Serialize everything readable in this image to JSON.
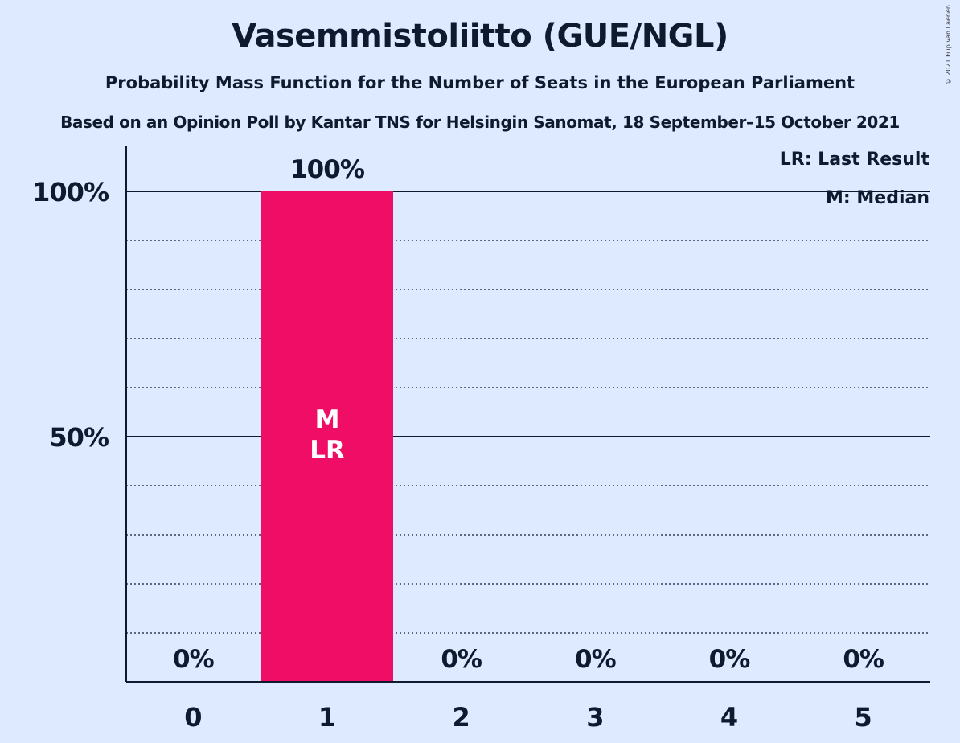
{
  "chart_data": {
    "type": "bar",
    "title": "Vasemmistoliitto (GUE/NGL)",
    "subtitle": "Probability Mass Function for the Number of Seats in the European Parliament",
    "subtitle2": "Based on an Opinion Poll by Kantar TNS for Helsingin Sanomat, 18 September–15 October 2021",
    "categories": [
      "0",
      "1",
      "2",
      "3",
      "4",
      "5"
    ],
    "values": [
      0,
      100,
      0,
      0,
      0,
      0
    ],
    "value_labels": [
      "0%",
      "100%",
      "0%",
      "0%",
      "0%",
      "0%"
    ],
    "bar_annotations": {
      "1": [
        "M",
        "LR"
      ]
    },
    "ylim": [
      0,
      100
    ],
    "yticks": [
      {
        "value": 50,
        "label": "50%"
      },
      {
        "value": 100,
        "label": "100%"
      }
    ],
    "minor_grid_values": [
      10,
      20,
      30,
      40,
      60,
      70,
      80,
      90
    ],
    "legend": [
      "LR: Last Result",
      "M: Median"
    ],
    "legend_position": "top-right",
    "colors": {
      "bar": "#f00d66",
      "background": "#ddeaff",
      "text": "#0f1a2e"
    }
  },
  "copyright": "© 2021 Filip van Laenen"
}
